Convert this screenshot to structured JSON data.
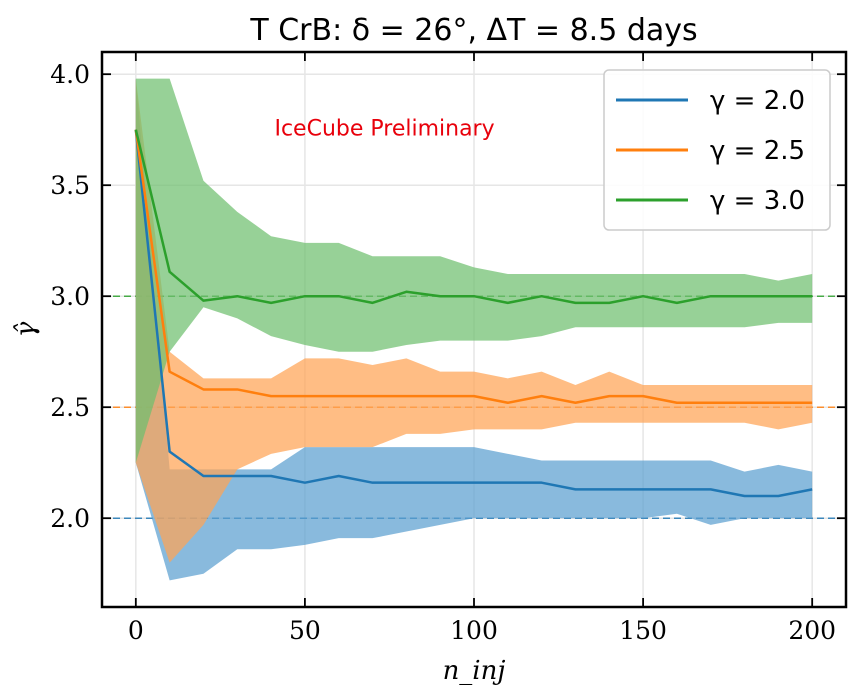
{
  "chart_data": {
    "type": "line",
    "title": "T CrB: δ = 26°, ΔT = 8.5 days",
    "xlabel": "n_inj",
    "ylabel": "γ̂",
    "xlim": [
      -10,
      210
    ],
    "ylim": [
      1.6,
      4.1
    ],
    "xticks": [
      0,
      50,
      100,
      150,
      200
    ],
    "yticks": [
      2.0,
      2.5,
      3.0,
      3.5,
      4.0
    ],
    "xtick_labels": [
      "0",
      "50",
      "100",
      "150",
      "200"
    ],
    "ytick_labels": [
      "2.0",
      "2.5",
      "3.0",
      "3.5",
      "4.0"
    ],
    "grid": true,
    "legend_position": "top-right",
    "annotation": {
      "text": "IceCube Preliminary",
      "color": "#e8000b",
      "x": 41,
      "y": 3.76
    },
    "x": [
      0,
      10,
      20,
      30,
      40,
      50,
      60,
      70,
      80,
      90,
      100,
      110,
      120,
      130,
      140,
      150,
      160,
      170,
      180,
      190,
      200
    ],
    "series": [
      {
        "name": "γ = 2.0",
        "true_value": 2.0,
        "color": "#1f77b4",
        "fill_color": "#5b9fd0",
        "values": [
          3.75,
          2.3,
          2.19,
          2.19,
          2.19,
          2.16,
          2.19,
          2.16,
          2.16,
          2.16,
          2.16,
          2.16,
          2.16,
          2.13,
          2.13,
          2.13,
          2.13,
          2.13,
          2.1,
          2.1,
          2.13
        ],
        "lower": [
          2.25,
          1.72,
          1.75,
          1.86,
          1.86,
          1.88,
          1.91,
          1.91,
          1.94,
          1.97,
          2.0,
          2.0,
          2.0,
          2.0,
          2.0,
          2.0,
          2.02,
          1.97,
          2.0,
          2.0,
          2.0
        ],
        "upper": [
          3.98,
          2.22,
          2.22,
          2.22,
          2.22,
          2.32,
          2.32,
          2.32,
          2.32,
          2.32,
          2.32,
          2.29,
          2.26,
          2.26,
          2.26,
          2.26,
          2.26,
          2.26,
          2.21,
          2.24,
          2.21
        ]
      },
      {
        "name": "γ = 2.5",
        "true_value": 2.5,
        "color": "#ff7f0e",
        "fill_color": "#ffa455",
        "values": [
          3.75,
          2.66,
          2.58,
          2.58,
          2.55,
          2.55,
          2.55,
          2.55,
          2.55,
          2.55,
          2.55,
          2.52,
          2.55,
          2.52,
          2.55,
          2.55,
          2.52,
          2.52,
          2.52,
          2.52,
          2.52
        ],
        "lower": [
          2.25,
          1.8,
          1.97,
          2.22,
          2.29,
          2.32,
          2.32,
          2.32,
          2.38,
          2.38,
          2.4,
          2.4,
          2.4,
          2.43,
          2.43,
          2.43,
          2.43,
          2.43,
          2.43,
          2.4,
          2.43
        ],
        "upper": [
          3.98,
          2.75,
          2.63,
          2.63,
          2.63,
          2.72,
          2.72,
          2.69,
          2.72,
          2.66,
          2.66,
          2.63,
          2.66,
          2.6,
          2.66,
          2.6,
          2.6,
          2.6,
          2.6,
          2.6,
          2.6
        ]
      },
      {
        "name": "γ = 3.0",
        "true_value": 3.0,
        "color": "#2ca02c",
        "fill_color": "#6fbf6f",
        "values": [
          3.75,
          3.11,
          2.98,
          3.0,
          2.97,
          3.0,
          3.0,
          2.97,
          3.02,
          3.0,
          3.0,
          2.97,
          3.0,
          2.97,
          2.97,
          3.0,
          2.97,
          3.0,
          3.0,
          3.0,
          3.0
        ],
        "lower": [
          2.25,
          2.75,
          2.95,
          2.9,
          2.82,
          2.78,
          2.75,
          2.75,
          2.78,
          2.8,
          2.8,
          2.8,
          2.82,
          2.86,
          2.86,
          2.86,
          2.86,
          2.86,
          2.86,
          2.88,
          2.88
        ],
        "upper": [
          3.98,
          3.98,
          3.52,
          3.38,
          3.27,
          3.24,
          3.24,
          3.18,
          3.18,
          3.18,
          3.13,
          3.1,
          3.1,
          3.1,
          3.1,
          3.1,
          3.1,
          3.1,
          3.1,
          3.07,
          3.1
        ]
      }
    ]
  }
}
